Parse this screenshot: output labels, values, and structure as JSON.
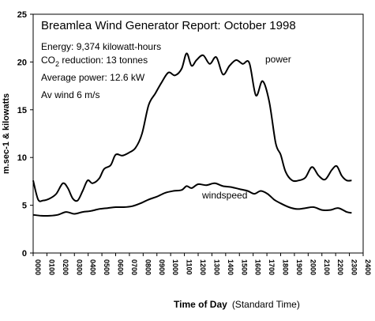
{
  "chart_data": {
    "type": "line",
    "title": "Breamlea Wind Generator  Report:  October 1998",
    "annotations": {
      "energy": "Energy: 9,374 kilowatt-hours",
      "co2_prefix": "CO",
      "co2_sub": "2",
      "co2_rest": " reduction:  13 tonnes",
      "average_power": "Average power: 12.6 kW",
      "average_wind": "Av wind 6 m/s"
    },
    "ylabel": "m.sec-1 & kilowatts",
    "xlabel_main": "Time of Day",
    "xlabel_note": "(Standard Time)",
    "ylim": [
      0,
      25
    ],
    "y_ticks": [
      "0",
      "5",
      "10",
      "15",
      "20",
      "25"
    ],
    "x_ticks": [
      "0000",
      "0100",
      "0200",
      "0300",
      "0400",
      "0500",
      "0600",
      "0700",
      "0800",
      "0900",
      "1000",
      "1100",
      "1200",
      "1300",
      "1400",
      "1500",
      "1600",
      "1700",
      "1800",
      "1900",
      "2000",
      "2100",
      "2200",
      "2300",
      "2400"
    ],
    "grid": false,
    "series": [
      {
        "name": "power",
        "color": "#000000",
        "points": [
          [
            0.0,
            7.6
          ],
          [
            0.3,
            5.6
          ],
          [
            0.6,
            5.5
          ],
          [
            1.0,
            5.7
          ],
          [
            1.4,
            6.2
          ],
          [
            1.8,
            7.3
          ],
          [
            2.1,
            6.8
          ],
          [
            2.4,
            5.7
          ],
          [
            2.7,
            5.5
          ],
          [
            3.0,
            6.5
          ],
          [
            3.3,
            7.6
          ],
          [
            3.6,
            7.3
          ],
          [
            4.0,
            7.8
          ],
          [
            4.3,
            8.8
          ],
          [
            4.7,
            9.2
          ],
          [
            5.0,
            10.3
          ],
          [
            5.4,
            10.2
          ],
          [
            5.8,
            10.5
          ],
          [
            6.2,
            11.0
          ],
          [
            6.6,
            12.5
          ],
          [
            7.0,
            15.5
          ],
          [
            7.4,
            16.7
          ],
          [
            7.8,
            17.9
          ],
          [
            8.2,
            18.9
          ],
          [
            8.6,
            18.6
          ],
          [
            9.0,
            19.3
          ],
          [
            9.3,
            20.9
          ],
          [
            9.6,
            19.6
          ],
          [
            9.9,
            20.2
          ],
          [
            10.3,
            20.7
          ],
          [
            10.7,
            19.8
          ],
          [
            11.1,
            20.5
          ],
          [
            11.5,
            18.7
          ],
          [
            11.9,
            19.6
          ],
          [
            12.3,
            20.2
          ],
          [
            12.7,
            19.8
          ],
          [
            13.1,
            19.9
          ],
          [
            13.5,
            16.5
          ],
          [
            13.9,
            18.0
          ],
          [
            14.3,
            15.9
          ],
          [
            14.7,
            11.5
          ],
          [
            15.0,
            10.3
          ],
          [
            15.3,
            8.5
          ],
          [
            15.7,
            7.6
          ],
          [
            16.1,
            7.6
          ],
          [
            16.5,
            7.9
          ],
          [
            16.9,
            9.0
          ],
          [
            17.3,
            8.1
          ],
          [
            17.7,
            7.7
          ],
          [
            18.1,
            8.7
          ],
          [
            18.4,
            9.1
          ],
          [
            18.7,
            8.1
          ],
          [
            19.0,
            7.6
          ],
          [
            19.3,
            7.6
          ]
        ]
      },
      {
        "name": "windspeed",
        "color": "#000000",
        "points": [
          [
            0.0,
            4.0
          ],
          [
            0.5,
            3.9
          ],
          [
            1.0,
            3.9
          ],
          [
            1.5,
            4.0
          ],
          [
            2.0,
            4.3
          ],
          [
            2.5,
            4.1
          ],
          [
            3.0,
            4.3
          ],
          [
            3.5,
            4.4
          ],
          [
            4.0,
            4.6
          ],
          [
            4.5,
            4.7
          ],
          [
            5.0,
            4.8
          ],
          [
            5.5,
            4.8
          ],
          [
            6.0,
            4.9
          ],
          [
            6.5,
            5.2
          ],
          [
            7.0,
            5.6
          ],
          [
            7.5,
            5.9
          ],
          [
            8.0,
            6.3
          ],
          [
            8.5,
            6.5
          ],
          [
            9.0,
            6.6
          ],
          [
            9.3,
            7.0
          ],
          [
            9.6,
            6.8
          ],
          [
            10.0,
            7.2
          ],
          [
            10.5,
            7.1
          ],
          [
            11.0,
            7.3
          ],
          [
            11.5,
            7.0
          ],
          [
            12.0,
            6.9
          ],
          [
            12.5,
            6.7
          ],
          [
            13.0,
            6.5
          ],
          [
            13.4,
            6.2
          ],
          [
            13.8,
            6.5
          ],
          [
            14.2,
            6.2
          ],
          [
            14.6,
            5.6
          ],
          [
            15.0,
            5.2
          ],
          [
            15.5,
            4.8
          ],
          [
            16.0,
            4.6
          ],
          [
            16.5,
            4.7
          ],
          [
            17.0,
            4.8
          ],
          [
            17.5,
            4.5
          ],
          [
            18.0,
            4.5
          ],
          [
            18.5,
            4.7
          ],
          [
            19.0,
            4.3
          ],
          [
            19.3,
            4.2
          ]
        ]
      }
    ],
    "series_labels": {
      "power": "power",
      "windspeed": "windspeed"
    }
  }
}
